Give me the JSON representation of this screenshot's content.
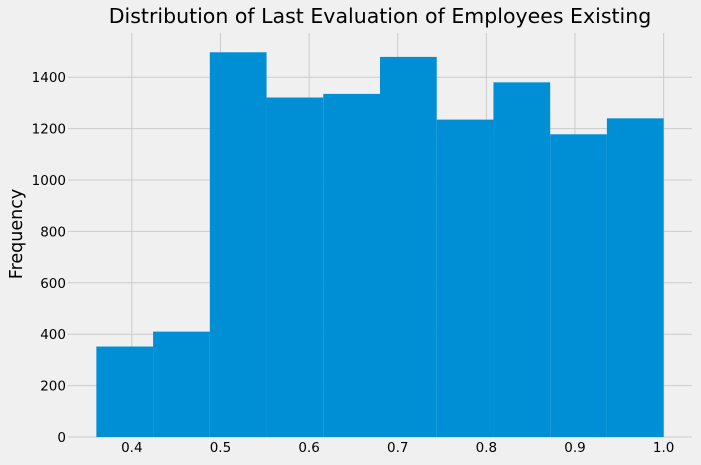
{
  "chart_data": {
    "type": "bar",
    "title": "Distribution of Last Evaluation of Employees Existing",
    "xlabel": "",
    "ylabel": "Frequency",
    "bin_edges": [
      0.36,
      0.424,
      0.488,
      0.552,
      0.616,
      0.68,
      0.744,
      0.808,
      0.872,
      0.936,
      1.0
    ],
    "values": [
      352,
      410,
      1497,
      1321,
      1335,
      1479,
      1235,
      1380,
      1178,
      1240
    ],
    "xlim": [
      0.328,
      1.032
    ],
    "ylim": [
      0,
      1572
    ],
    "xticks": [
      "0.4",
      "0.5",
      "0.6",
      "0.7",
      "0.8",
      "0.9",
      "1.0"
    ],
    "yticks": [
      "0",
      "200",
      "400",
      "600",
      "800",
      "1000",
      "1200",
      "1400"
    ],
    "grid": true,
    "colors": {
      "bar": "#008fd5",
      "background": "#f0f0f0",
      "grid": "#cbcbcb"
    }
  }
}
